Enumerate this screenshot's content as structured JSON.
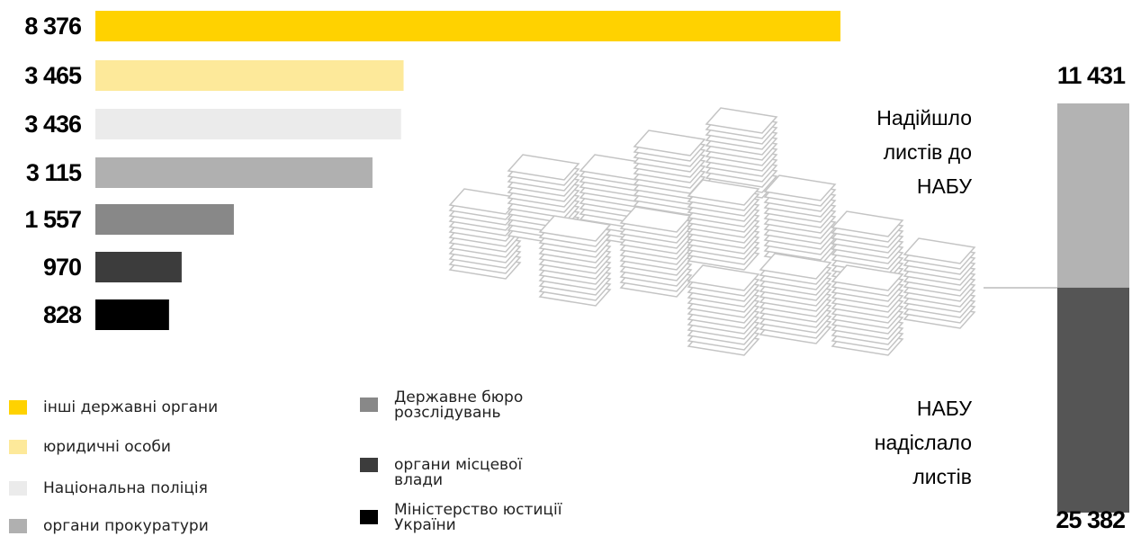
{
  "chart_data": [
    {
      "type": "hbar",
      "categories": [
        "інші державні органи",
        "юридичні особи",
        "Національна поліція",
        "органи прокуратури",
        "Державне бюро розслідувань",
        "органи місцевої влади",
        "Міністерство юстиції України"
      ],
      "values": [
        8376,
        3465,
        3436,
        3115,
        1557,
        970,
        828
      ],
      "value_labels": [
        "8 376",
        "3 465",
        "3 436",
        "3 115",
        "1 557",
        "970",
        "828"
      ],
      "colors": [
        "#ffd200",
        "#fde99a",
        "#ebebeb",
        "#b0b0b0",
        "#888888",
        "#3c3c3c",
        "#000000"
      ]
    },
    {
      "type": "overlap-column",
      "categories": [
        "Надійшло листів до НАБУ",
        "НАБУ надіслало листів"
      ],
      "values": [
        11431,
        25382
      ],
      "value_labels": [
        "11 431",
        "25 382"
      ],
      "colors": [
        "#b3b3b3",
        "#555555"
      ]
    }
  ]
}
